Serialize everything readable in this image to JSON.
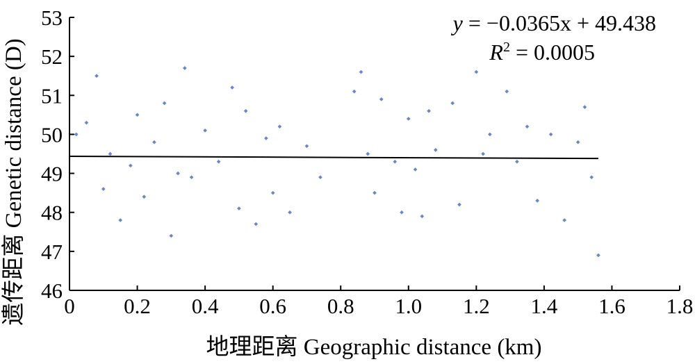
{
  "chart_data": {
    "type": "scatter",
    "xlabel": "地理距离 Geographic distance (km)",
    "ylabel": "遗传距离 Genetic distance (D)",
    "xlim": [
      0,
      1.8
    ],
    "ylim": [
      46,
      53
    ],
    "x_ticks": [
      "0",
      "0.2",
      "0.4",
      "0.6",
      "0.8",
      "1.0",
      "1.2",
      "1.4",
      "1.6",
      "1.8"
    ],
    "y_ticks": [
      "46",
      "47",
      "48",
      "49",
      "50",
      "51",
      "52",
      "53"
    ],
    "point_color": "#6a86c4",
    "line_color": "#000000",
    "regression": {
      "slope": -0.0365,
      "intercept": 49.438,
      "x_range": [
        0,
        1.56
      ],
      "equation_prefix": "y",
      "equation_rest": " = −0.0365x + 49.438",
      "r2_prefix": "R",
      "r2_rest": " = 0.0005"
    },
    "points": [
      [
        0.02,
        50.0
      ],
      [
        0.05,
        50.3
      ],
      [
        0.08,
        51.5
      ],
      [
        0.1,
        48.6
      ],
      [
        0.12,
        49.5
      ],
      [
        0.15,
        47.8
      ],
      [
        0.18,
        49.2
      ],
      [
        0.2,
        50.5
      ],
      [
        0.22,
        48.4
      ],
      [
        0.25,
        49.8
      ],
      [
        0.28,
        50.8
      ],
      [
        0.3,
        47.4
      ],
      [
        0.32,
        49.0
      ],
      [
        0.34,
        51.7
      ],
      [
        0.36,
        48.9
      ],
      [
        0.4,
        50.1
      ],
      [
        0.44,
        49.3
      ],
      [
        0.48,
        51.2
      ],
      [
        0.5,
        48.1
      ],
      [
        0.52,
        50.6
      ],
      [
        0.55,
        47.7
      ],
      [
        0.58,
        49.9
      ],
      [
        0.6,
        48.5
      ],
      [
        0.62,
        50.2
      ],
      [
        0.65,
        48.0
      ],
      [
        0.7,
        49.7
      ],
      [
        0.74,
        48.9
      ],
      [
        0.84,
        51.1
      ],
      [
        0.86,
        51.6
      ],
      [
        0.88,
        49.5
      ],
      [
        0.9,
        48.5
      ],
      [
        0.92,
        50.9
      ],
      [
        0.96,
        49.3
      ],
      [
        0.98,
        48.0
      ],
      [
        1.0,
        50.4
      ],
      [
        1.02,
        49.1
      ],
      [
        1.04,
        47.9
      ],
      [
        1.06,
        50.6
      ],
      [
        1.08,
        49.6
      ],
      [
        1.13,
        50.8
      ],
      [
        1.15,
        48.2
      ],
      [
        1.2,
        51.6
      ],
      [
        1.22,
        49.5
      ],
      [
        1.24,
        50.0
      ],
      [
        1.29,
        51.1
      ],
      [
        1.32,
        49.3
      ],
      [
        1.35,
        50.2
      ],
      [
        1.38,
        48.3
      ],
      [
        1.42,
        50.0
      ],
      [
        1.46,
        47.8
      ],
      [
        1.5,
        49.8
      ],
      [
        1.52,
        50.7
      ],
      [
        1.54,
        48.9
      ],
      [
        1.56,
        46.9
      ]
    ]
  }
}
